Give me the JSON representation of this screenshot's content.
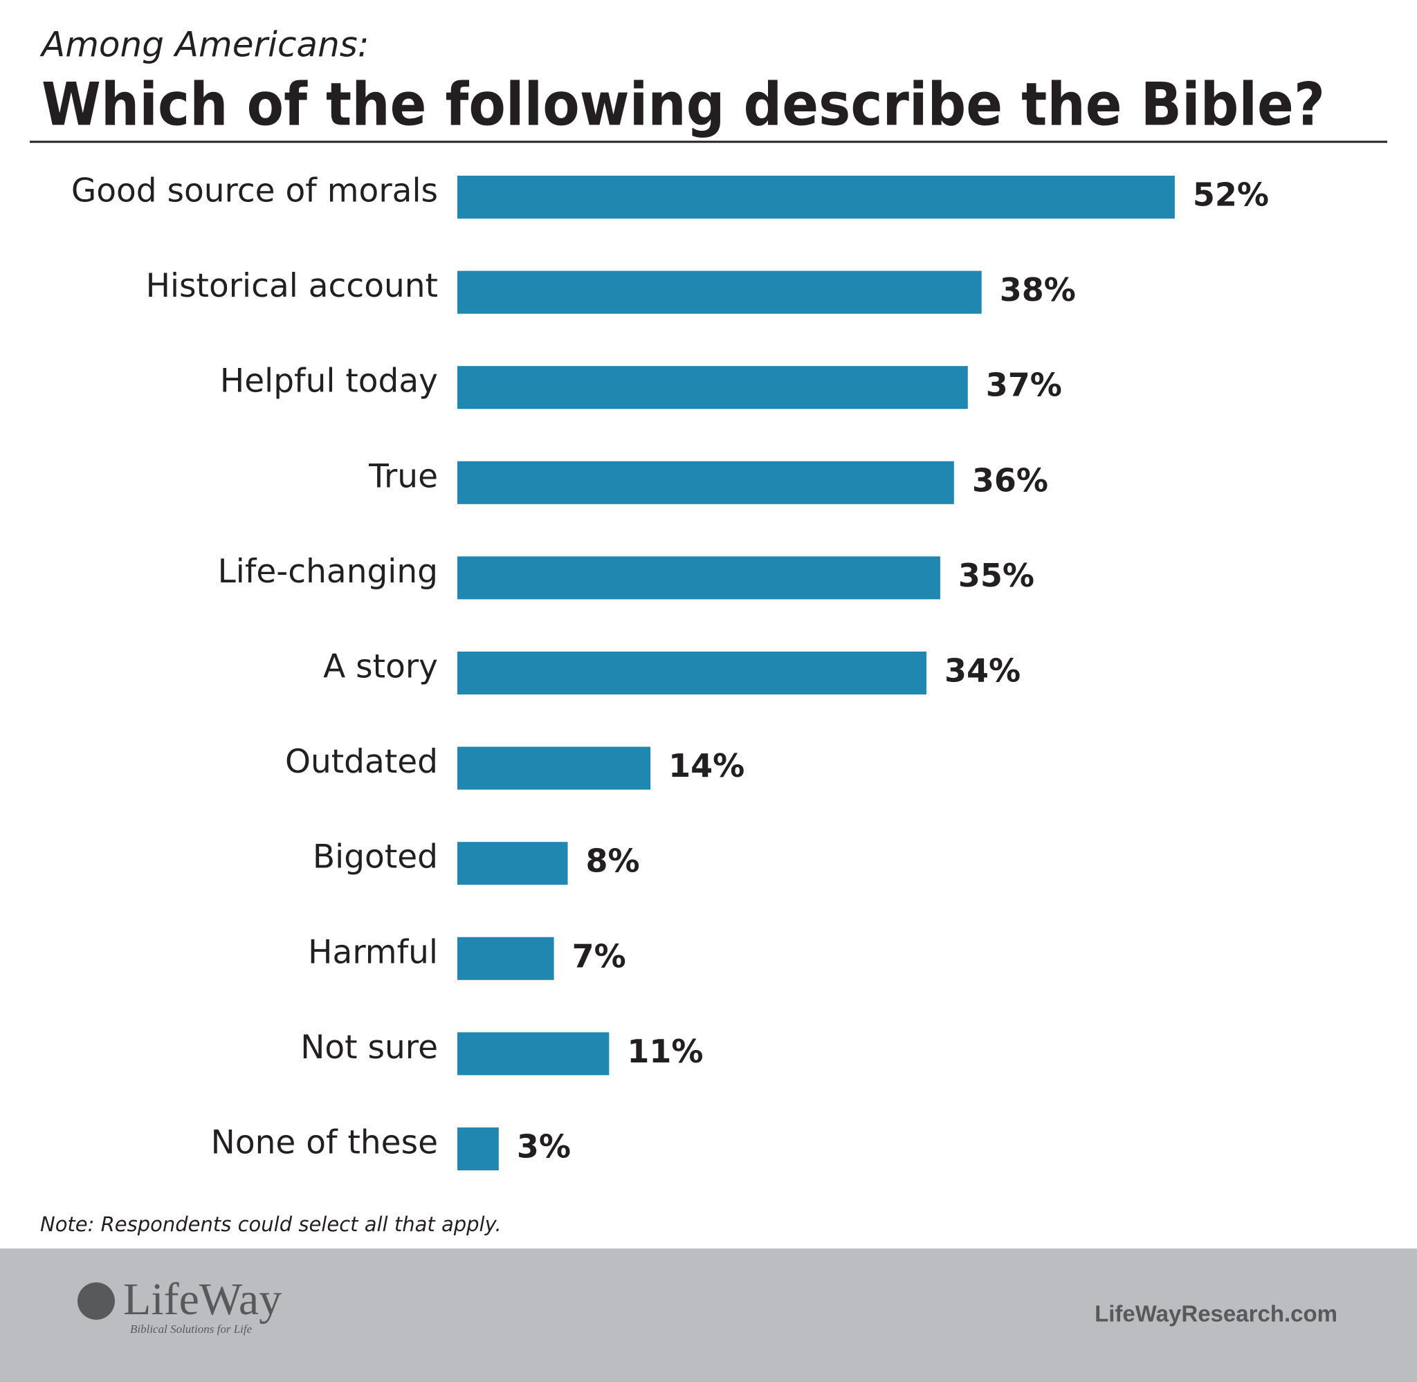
{
  "chart_data": {
    "type": "bar",
    "orientation": "horizontal",
    "subtitle": "Among Americans:",
    "title": "Which of the following describe the Bible?",
    "categories": [
      "Good source of morals",
      "Historical account",
      "Helpful today",
      "True",
      "Life-changing",
      "A story",
      "Outdated",
      "Bigoted",
      "Harmful",
      "Not sure",
      "None of these"
    ],
    "values": [
      52,
      38,
      37,
      36,
      35,
      34,
      14,
      8,
      7,
      11,
      3
    ],
    "value_labels": [
      "52%",
      "38%",
      "37%",
      "36%",
      "35%",
      "34%",
      "14%",
      "8%",
      "7%",
      "11%",
      "3%"
    ],
    "color": "#1f87b0",
    "note": "Note: Respondents could select all that apply."
  },
  "footer": {
    "logo": "LifeWay",
    "tagline": "Biblical Solutions for Life",
    "url": "LifeWayResearch.com"
  }
}
